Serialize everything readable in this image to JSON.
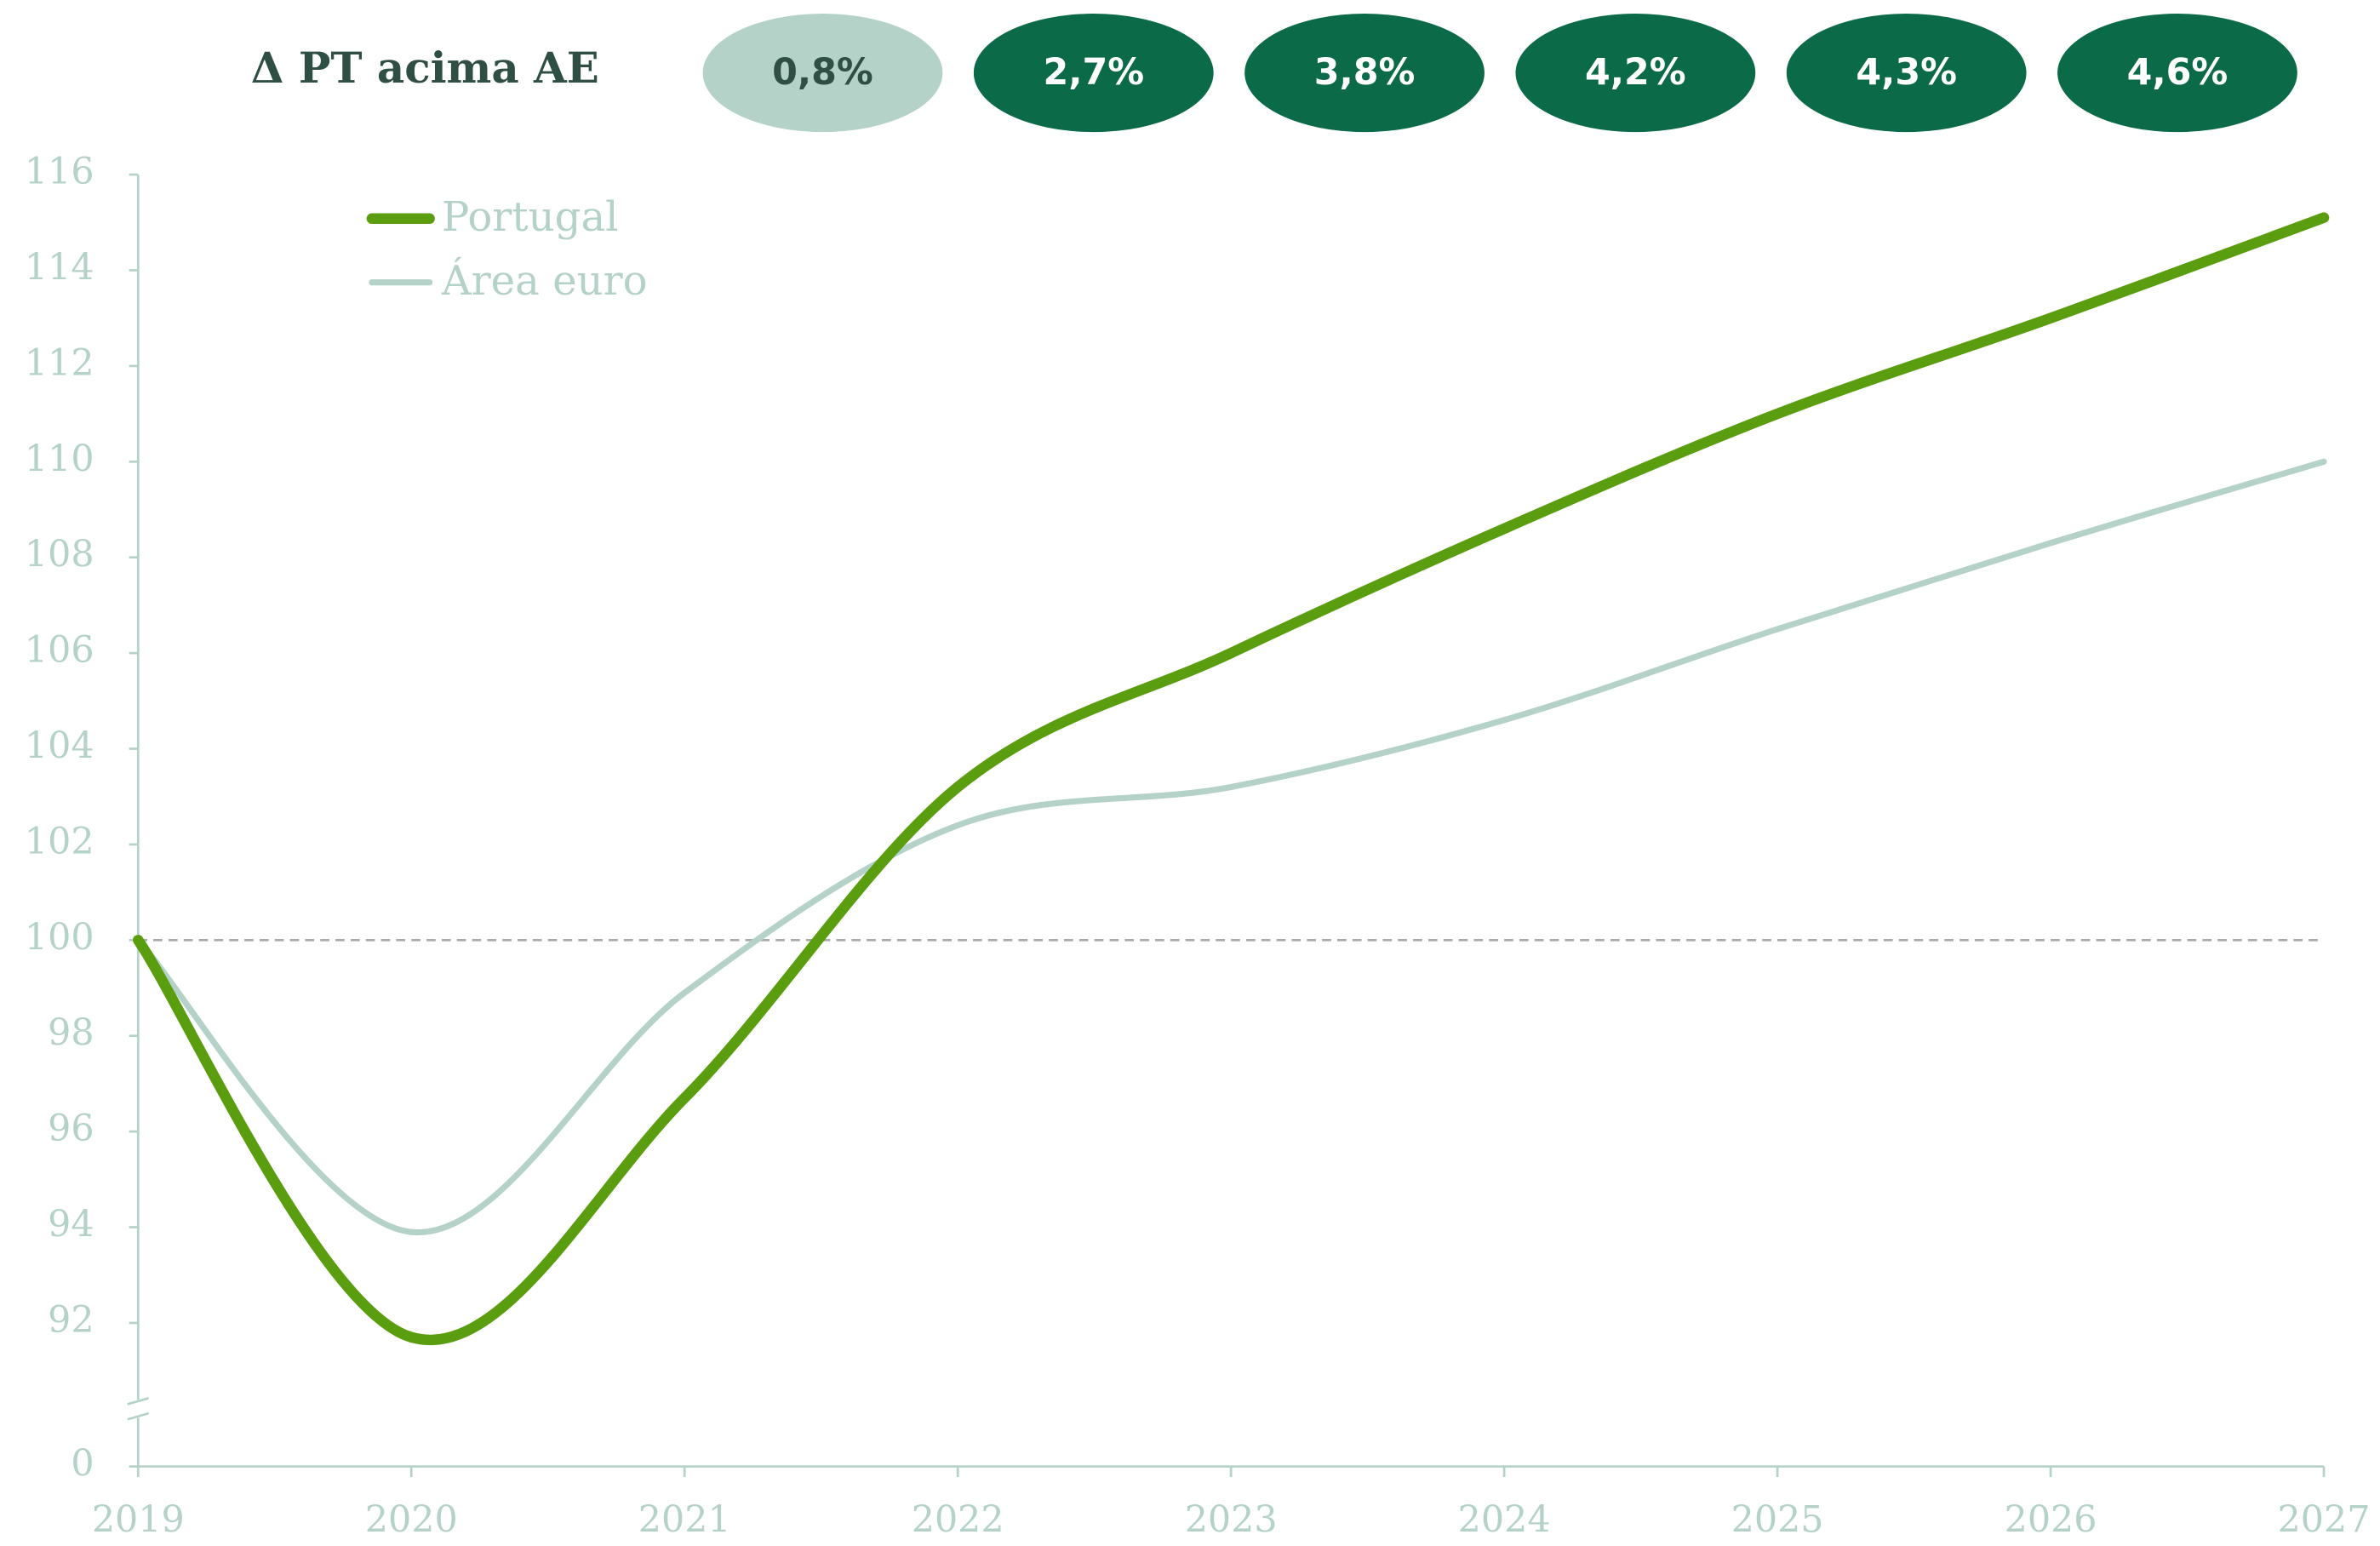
{
  "chart_data": {
    "type": "line",
    "header": "Δ PT acima AE",
    "header_items": [
      {
        "value": 0.8,
        "label": "0,8%",
        "color": "#b5d2c8",
        "text_color": "#2f4f45"
      },
      {
        "value": 2.7,
        "label": "2,7%",
        "color": "#0b6a47",
        "text_color": "#ffffff"
      },
      {
        "value": 3.8,
        "label": "3,8%",
        "color": "#0b6a47",
        "text_color": "#ffffff"
      },
      {
        "value": 4.2,
        "label": "4,2%",
        "color": "#0b6a47",
        "text_color": "#ffffff"
      },
      {
        "value": 4.3,
        "label": "4,3%",
        "color": "#0b6a47",
        "text_color": "#ffffff"
      },
      {
        "value": 4.6,
        "label": "4,6%",
        "color": "#0b6a47",
        "text_color": "#ffffff"
      }
    ],
    "x": [
      2019,
      2020,
      2021,
      2022,
      2023,
      2024,
      2025,
      2026,
      2027
    ],
    "xlim": [
      2019,
      2027
    ],
    "xticks": [
      2019,
      2020,
      2021,
      2022,
      2023,
      2024,
      2025,
      2026,
      2027
    ],
    "series": [
      {
        "name": "Portugal",
        "color": "#5a9e0f",
        "width": 7,
        "values": [
          100,
          91.7,
          96.7,
          103.2,
          106,
          108.6,
          111,
          113,
          115.1
        ]
      },
      {
        "name": "Área euro",
        "color": "#b5d2c8",
        "width": 4,
        "values": [
          100,
          93.9,
          98.9,
          102.4,
          103.2,
          104.6,
          106.5,
          108.3,
          110
        ]
      }
    ],
    "ylim": [
      89,
      116
    ],
    "yticks": [
      0,
      92,
      94,
      96,
      98,
      100,
      102,
      104,
      106,
      108,
      110,
      112,
      114,
      116
    ],
    "y_axis_break": true,
    "reference_line": 100,
    "legend": "top-left"
  }
}
